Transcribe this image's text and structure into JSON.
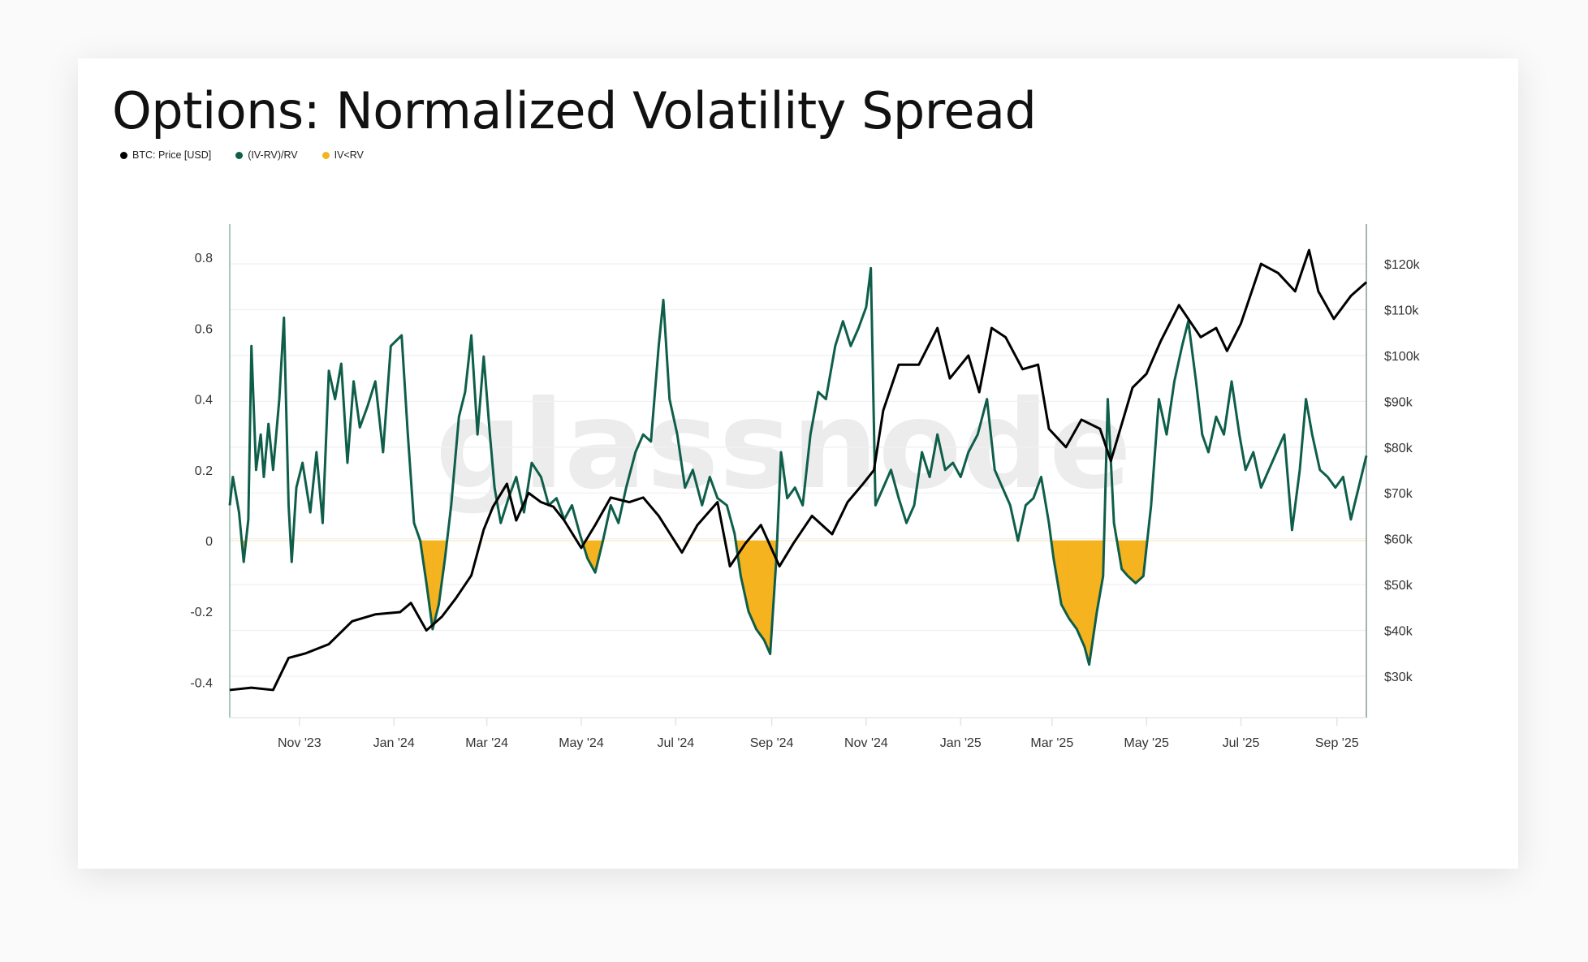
{
  "title": "Options: Normalized Volatility Spread",
  "legend": [
    {
      "label": "BTC: Price [USD]",
      "color": "#000000"
    },
    {
      "label": "(IV-RV)/RV",
      "color": "#0e5e4a"
    },
    {
      "label": "IV<RV",
      "color": "#f5b320"
    }
  ],
  "watermark": "glassnode",
  "chart_data": {
    "type": "line",
    "title": "Options: Normalized Volatility Spread",
    "x_range": [
      "2023-09-17",
      "2025-09-20"
    ],
    "x_ticks": [
      {
        "date": "2023-11-01",
        "label": "Nov '23"
      },
      {
        "date": "2024-01-01",
        "label": "Jan '24"
      },
      {
        "date": "2024-03-01",
        "label": "Mar '24"
      },
      {
        "date": "2024-05-01",
        "label": "May '24"
      },
      {
        "date": "2024-07-01",
        "label": "Jul '24"
      },
      {
        "date": "2024-09-01",
        "label": "Sep '24"
      },
      {
        "date": "2024-11-01",
        "label": "Nov '24"
      },
      {
        "date": "2025-01-01",
        "label": "Jan '25"
      },
      {
        "date": "2025-03-01",
        "label": "Mar '25"
      },
      {
        "date": "2025-05-01",
        "label": "May '25"
      },
      {
        "date": "2025-07-01",
        "label": "Jul '25"
      },
      {
        "date": "2025-09-01",
        "label": "Sep '25"
      }
    ],
    "y_left": {
      "ticks": [
        -0.4,
        -0.2,
        0,
        0.2,
        0.4,
        0.6,
        0.8
      ],
      "labels": [
        "-0.4",
        "-0.2",
        "0",
        "0.2",
        "0.4",
        "0.6",
        "0.8"
      ],
      "range": [
        -0.5,
        0.92
      ]
    },
    "y_right": {
      "ticks": [
        30,
        40,
        50,
        60,
        70,
        80,
        90,
        100,
        110,
        120
      ],
      "labels": [
        "$30k",
        "$40k",
        "$50k",
        "$60k",
        "$70k",
        "$80k",
        "$90k",
        "$100k",
        "$110k",
        "$120k"
      ],
      "unit": "k USD",
      "range": [
        21,
        128
      ]
    },
    "grid": true,
    "legend_position": "top-left",
    "series": [
      {
        "name": "BTC: Price [USD]",
        "axis": "right",
        "color": "#000000",
        "points": [
          [
            "2023-09-17",
            27
          ],
          [
            "2023-10-01",
            27.5
          ],
          [
            "2023-10-15",
            27
          ],
          [
            "2023-10-25",
            34
          ],
          [
            "2023-11-05",
            35
          ],
          [
            "2023-11-20",
            37
          ],
          [
            "2023-12-05",
            42
          ],
          [
            "2023-12-20",
            43.5
          ],
          [
            "2024-01-05",
            44
          ],
          [
            "2024-01-12",
            46
          ],
          [
            "2024-01-22",
            40
          ],
          [
            "2024-02-01",
            43
          ],
          [
            "2024-02-10",
            47
          ],
          [
            "2024-02-20",
            52
          ],
          [
            "2024-02-28",
            62
          ],
          [
            "2024-03-05",
            67
          ],
          [
            "2024-03-14",
            72
          ],
          [
            "2024-03-20",
            64
          ],
          [
            "2024-03-28",
            70
          ],
          [
            "2024-04-05",
            68
          ],
          [
            "2024-04-13",
            67
          ],
          [
            "2024-04-20",
            64
          ],
          [
            "2024-05-01",
            58
          ],
          [
            "2024-05-10",
            63
          ],
          [
            "2024-05-20",
            69
          ],
          [
            "2024-06-01",
            68
          ],
          [
            "2024-06-10",
            69
          ],
          [
            "2024-06-20",
            65
          ],
          [
            "2024-07-05",
            57
          ],
          [
            "2024-07-15",
            63
          ],
          [
            "2024-07-28",
            68
          ],
          [
            "2024-08-05",
            54
          ],
          [
            "2024-08-15",
            59
          ],
          [
            "2024-08-25",
            63
          ],
          [
            "2024-09-06",
            54
          ],
          [
            "2024-09-15",
            59
          ],
          [
            "2024-09-27",
            65
          ],
          [
            "2024-10-10",
            61
          ],
          [
            "2024-10-20",
            68
          ],
          [
            "2024-10-30",
            72
          ],
          [
            "2024-11-06",
            75
          ],
          [
            "2024-11-12",
            88
          ],
          [
            "2024-11-22",
            98
          ],
          [
            "2024-12-05",
            98
          ],
          [
            "2024-12-17",
            106
          ],
          [
            "2024-12-25",
            95
          ],
          [
            "2025-01-06",
            100
          ],
          [
            "2025-01-13",
            92
          ],
          [
            "2025-01-21",
            106
          ],
          [
            "2025-01-30",
            104
          ],
          [
            "2025-02-10",
            97
          ],
          [
            "2025-02-20",
            98
          ],
          [
            "2025-02-27",
            84
          ],
          [
            "2025-03-10",
            80
          ],
          [
            "2025-03-20",
            86
          ],
          [
            "2025-04-01",
            84
          ],
          [
            "2025-04-08",
            77
          ],
          [
            "2025-04-15",
            85
          ],
          [
            "2025-04-22",
            93
          ],
          [
            "2025-05-01",
            96
          ],
          [
            "2025-05-10",
            103
          ],
          [
            "2025-05-22",
            111
          ],
          [
            "2025-06-05",
            104
          ],
          [
            "2025-06-15",
            106
          ],
          [
            "2025-06-22",
            101
          ],
          [
            "2025-07-01",
            107
          ],
          [
            "2025-07-10",
            116
          ],
          [
            "2025-07-14",
            120
          ],
          [
            "2025-07-25",
            118
          ],
          [
            "2025-08-05",
            114
          ],
          [
            "2025-08-14",
            123
          ],
          [
            "2025-08-20",
            114
          ],
          [
            "2025-08-30",
            108
          ],
          [
            "2025-09-10",
            113
          ],
          [
            "2025-09-20",
            116
          ]
        ]
      },
      {
        "name": "(IV-RV)/RV",
        "axis": "left",
        "color": "#0e5e4a",
        "points": [
          [
            "2023-09-17",
            0.1
          ],
          [
            "2023-09-19",
            0.18
          ],
          [
            "2023-09-23",
            0.08
          ],
          [
            "2023-09-26",
            -0.06
          ],
          [
            "2023-09-29",
            0.06
          ],
          [
            "2023-10-01",
            0.55
          ],
          [
            "2023-10-04",
            0.2
          ],
          [
            "2023-10-07",
            0.3
          ],
          [
            "2023-10-09",
            0.18
          ],
          [
            "2023-10-12",
            0.33
          ],
          [
            "2023-10-15",
            0.2
          ],
          [
            "2023-10-19",
            0.4
          ],
          [
            "2023-10-22",
            0.63
          ],
          [
            "2023-10-25",
            0.1
          ],
          [
            "2023-10-27",
            -0.06
          ],
          [
            "2023-10-30",
            0.15
          ],
          [
            "2023-11-03",
            0.22
          ],
          [
            "2023-11-08",
            0.08
          ],
          [
            "2023-11-12",
            0.25
          ],
          [
            "2023-11-16",
            0.05
          ],
          [
            "2023-11-20",
            0.48
          ],
          [
            "2023-11-24",
            0.4
          ],
          [
            "2023-11-28",
            0.5
          ],
          [
            "2023-12-02",
            0.22
          ],
          [
            "2023-12-06",
            0.45
          ],
          [
            "2023-12-10",
            0.32
          ],
          [
            "2023-12-15",
            0.38
          ],
          [
            "2023-12-20",
            0.45
          ],
          [
            "2023-12-25",
            0.25
          ],
          [
            "2023-12-30",
            0.55
          ],
          [
            "2024-01-06",
            0.58
          ],
          [
            "2024-01-10",
            0.3
          ],
          [
            "2024-01-14",
            0.05
          ],
          [
            "2024-01-18",
            0.0
          ],
          [
            "2024-01-22",
            -0.12
          ],
          [
            "2024-01-26",
            -0.25
          ],
          [
            "2024-01-30",
            -0.18
          ],
          [
            "2024-02-03",
            -0.05
          ],
          [
            "2024-02-07",
            0.1
          ],
          [
            "2024-02-12",
            0.35
          ],
          [
            "2024-02-16",
            0.42
          ],
          [
            "2024-02-20",
            0.58
          ],
          [
            "2024-02-24",
            0.3
          ],
          [
            "2024-02-28",
            0.52
          ],
          [
            "2024-03-03",
            0.3
          ],
          [
            "2024-03-06",
            0.15
          ],
          [
            "2024-03-10",
            0.05
          ],
          [
            "2024-03-15",
            0.12
          ],
          [
            "2024-03-20",
            0.18
          ],
          [
            "2024-03-25",
            0.08
          ],
          [
            "2024-03-30",
            0.22
          ],
          [
            "2024-04-05",
            0.18
          ],
          [
            "2024-04-10",
            0.1
          ],
          [
            "2024-04-15",
            0.12
          ],
          [
            "2024-04-20",
            0.06
          ],
          [
            "2024-04-25",
            0.1
          ],
          [
            "2024-04-30",
            0.02
          ],
          [
            "2024-05-05",
            -0.05
          ],
          [
            "2024-05-10",
            -0.09
          ],
          [
            "2024-05-15",
            0.0
          ],
          [
            "2024-05-20",
            0.1
          ],
          [
            "2024-05-25",
            0.05
          ],
          [
            "2024-05-30",
            0.15
          ],
          [
            "2024-06-05",
            0.25
          ],
          [
            "2024-06-10",
            0.3
          ],
          [
            "2024-06-15",
            0.28
          ],
          [
            "2024-06-20",
            0.55
          ],
          [
            "2024-06-23",
            0.68
          ],
          [
            "2024-06-27",
            0.4
          ],
          [
            "2024-07-02",
            0.3
          ],
          [
            "2024-07-07",
            0.15
          ],
          [
            "2024-07-12",
            0.2
          ],
          [
            "2024-07-18",
            0.1
          ],
          [
            "2024-07-23",
            0.18
          ],
          [
            "2024-07-28",
            0.12
          ],
          [
            "2024-08-03",
            0.1
          ],
          [
            "2024-08-08",
            0.02
          ],
          [
            "2024-08-12",
            -0.1
          ],
          [
            "2024-08-17",
            -0.2
          ],
          [
            "2024-08-22",
            -0.25
          ],
          [
            "2024-08-27",
            -0.28
          ],
          [
            "2024-08-31",
            -0.32
          ],
          [
            "2024-09-04",
            -0.05
          ],
          [
            "2024-09-07",
            0.25
          ],
          [
            "2024-09-11",
            0.12
          ],
          [
            "2024-09-16",
            0.15
          ],
          [
            "2024-09-21",
            0.1
          ],
          [
            "2024-09-26",
            0.3
          ],
          [
            "2024-10-01",
            0.42
          ],
          [
            "2024-10-06",
            0.4
          ],
          [
            "2024-10-12",
            0.55
          ],
          [
            "2024-10-17",
            0.62
          ],
          [
            "2024-10-22",
            0.55
          ],
          [
            "2024-10-27",
            0.6
          ],
          [
            "2024-11-01",
            0.66
          ],
          [
            "2024-11-04",
            0.77
          ],
          [
            "2024-11-07",
            0.1
          ],
          [
            "2024-11-12",
            0.15
          ],
          [
            "2024-11-17",
            0.2
          ],
          [
            "2024-11-22",
            0.12
          ],
          [
            "2024-11-27",
            0.05
          ],
          [
            "2024-12-02",
            0.1
          ],
          [
            "2024-12-07",
            0.25
          ],
          [
            "2024-12-12",
            0.18
          ],
          [
            "2024-12-17",
            0.3
          ],
          [
            "2024-12-22",
            0.2
          ],
          [
            "2024-12-27",
            0.22
          ],
          [
            "2025-01-01",
            0.18
          ],
          [
            "2025-01-06",
            0.25
          ],
          [
            "2025-01-12",
            0.3
          ],
          [
            "2025-01-18",
            0.4
          ],
          [
            "2025-01-23",
            0.2
          ],
          [
            "2025-01-28",
            0.15
          ],
          [
            "2025-02-02",
            0.1
          ],
          [
            "2025-02-07",
            0.0
          ],
          [
            "2025-02-12",
            0.1
          ],
          [
            "2025-02-17",
            0.12
          ],
          [
            "2025-02-22",
            0.18
          ],
          [
            "2025-02-27",
            0.05
          ],
          [
            "2025-03-02",
            -0.05
          ],
          [
            "2025-03-07",
            -0.18
          ],
          [
            "2025-03-12",
            -0.22
          ],
          [
            "2025-03-17",
            -0.25
          ],
          [
            "2025-03-22",
            -0.3
          ],
          [
            "2025-03-25",
            -0.35
          ],
          [
            "2025-03-30",
            -0.2
          ],
          [
            "2025-04-03",
            -0.1
          ],
          [
            "2025-04-06",
            0.4
          ],
          [
            "2025-04-10",
            0.05
          ],
          [
            "2025-04-15",
            -0.08
          ],
          [
            "2025-04-19",
            -0.1
          ],
          [
            "2025-04-24",
            -0.12
          ],
          [
            "2025-04-29",
            -0.1
          ],
          [
            "2025-05-04",
            0.1
          ],
          [
            "2025-05-09",
            0.4
          ],
          [
            "2025-05-14",
            0.3
          ],
          [
            "2025-05-19",
            0.45
          ],
          [
            "2025-05-24",
            0.55
          ],
          [
            "2025-05-28",
            0.62
          ],
          [
            "2025-06-02",
            0.45
          ],
          [
            "2025-06-06",
            0.3
          ],
          [
            "2025-06-10",
            0.25
          ],
          [
            "2025-06-15",
            0.35
          ],
          [
            "2025-06-20",
            0.3
          ],
          [
            "2025-06-25",
            0.45
          ],
          [
            "2025-06-30",
            0.3
          ],
          [
            "2025-07-04",
            0.2
          ],
          [
            "2025-07-09",
            0.25
          ],
          [
            "2025-07-14",
            0.15
          ],
          [
            "2025-07-19",
            0.2
          ],
          [
            "2025-07-24",
            0.25
          ],
          [
            "2025-07-29",
            0.3
          ],
          [
            "2025-08-03",
            0.03
          ],
          [
            "2025-08-08",
            0.2
          ],
          [
            "2025-08-12",
            0.4
          ],
          [
            "2025-08-16",
            0.3
          ],
          [
            "2025-08-21",
            0.2
          ],
          [
            "2025-08-26",
            0.18
          ],
          [
            "2025-08-31",
            0.15
          ],
          [
            "2025-09-05",
            0.18
          ],
          [
            "2025-09-10",
            0.06
          ],
          [
            "2025-09-15",
            0.15
          ],
          [
            "2025-09-20",
            0.24
          ]
        ]
      },
      {
        "name": "IV<RV",
        "type": "area",
        "color": "#f5b320",
        "derived_from": "(IV-RV)/RV below 0"
      }
    ]
  }
}
